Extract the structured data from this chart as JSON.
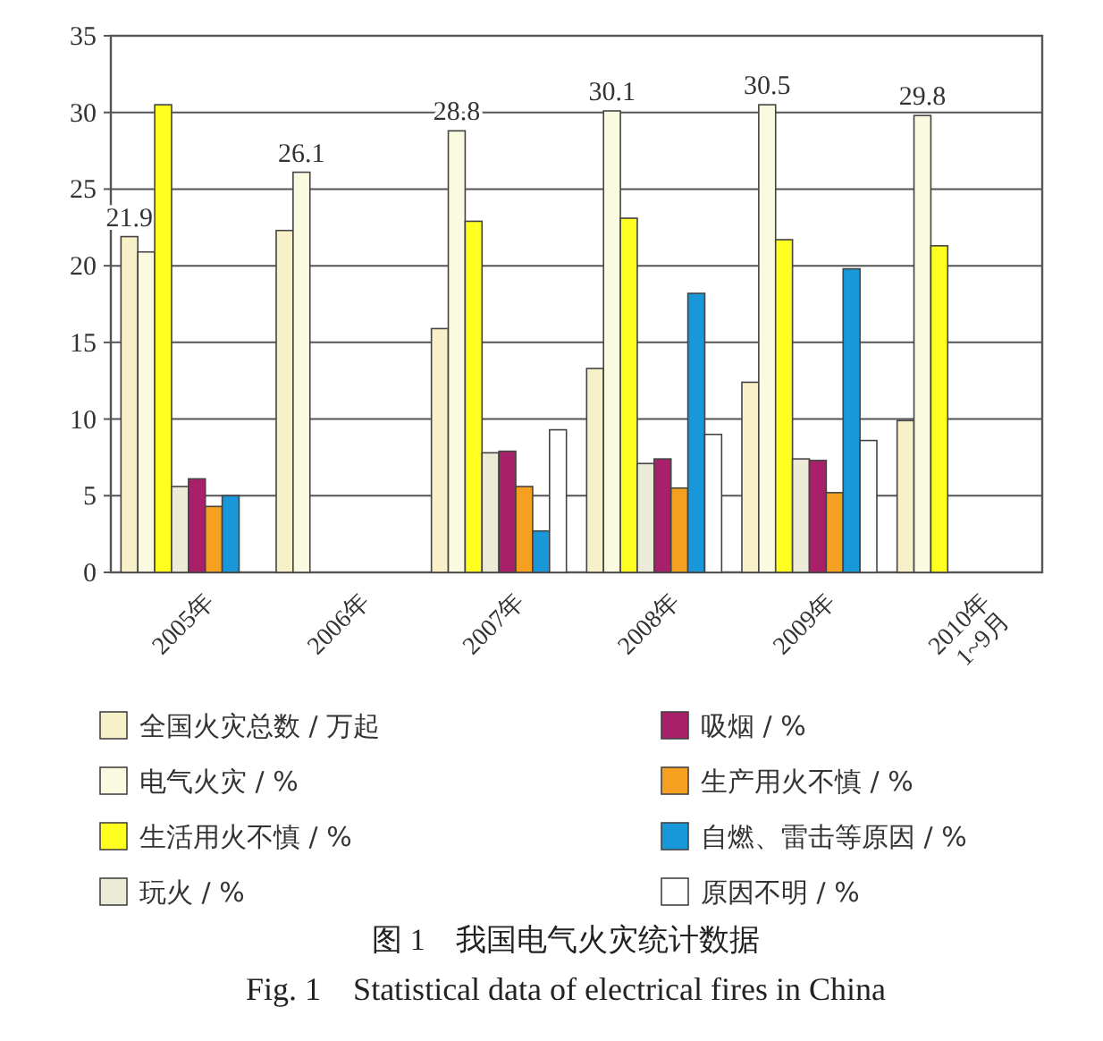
{
  "chart_data": {
    "type": "bar",
    "categories": [
      "2005年",
      "2006年",
      "2007年",
      "2008年",
      "2009年",
      "2010年\n1~9月"
    ],
    "series": [
      {
        "name": "全国火灾总数 / 万起",
        "color": "#f8f0c8",
        "values": [
          21.9,
          22.3,
          15.9,
          13.3,
          12.4,
          9.9
        ],
        "value_labels": [
          "21.9",
          null,
          null,
          null,
          null,
          null
        ]
      },
      {
        "name": "电气火灾 / %",
        "color": "#fafae0",
        "values": [
          20.9,
          26.1,
          28.8,
          30.1,
          30.5,
          29.8
        ],
        "value_labels": [
          null,
          "26.1",
          "28.8",
          "30.1",
          "30.5",
          "29.8"
        ]
      },
      {
        "name": "生活用火不慎 / %",
        "color": "#ffff20",
        "values": [
          30.5,
          null,
          22.9,
          23.1,
          21.7,
          21.3
        ]
      },
      {
        "name": "玩火 / %",
        "color": "#ecebd8",
        "values": [
          5.6,
          null,
          7.8,
          7.1,
          7.4,
          null
        ]
      },
      {
        "name": "吸烟 / %",
        "color": "#a8206a",
        "values": [
          6.1,
          null,
          7.9,
          7.4,
          7.3,
          null
        ]
      },
      {
        "name": "生产用火不慎 / %",
        "color": "#f5a020",
        "values": [
          4.3,
          null,
          5.6,
          5.5,
          5.2,
          null
        ]
      },
      {
        "name": "自燃、雷击等原因 / %",
        "color": "#1898d8",
        "values": [
          5.0,
          null,
          2.7,
          18.2,
          19.8,
          null
        ]
      },
      {
        "name": "原因不明 / %",
        "color": "#ffffff",
        "values": [
          null,
          null,
          9.3,
          9.0,
          8.6,
          null
        ]
      }
    ],
    "ylim": [
      0,
      35
    ],
    "yticks": [
      0,
      5,
      10,
      15,
      20,
      25,
      30,
      35
    ],
    "grid": "y",
    "legend": "bottom",
    "annotations": [
      "图 1　我国电气火灾统计数据",
      "Fig. 1　Statistical data of electrical fires in China"
    ]
  }
}
